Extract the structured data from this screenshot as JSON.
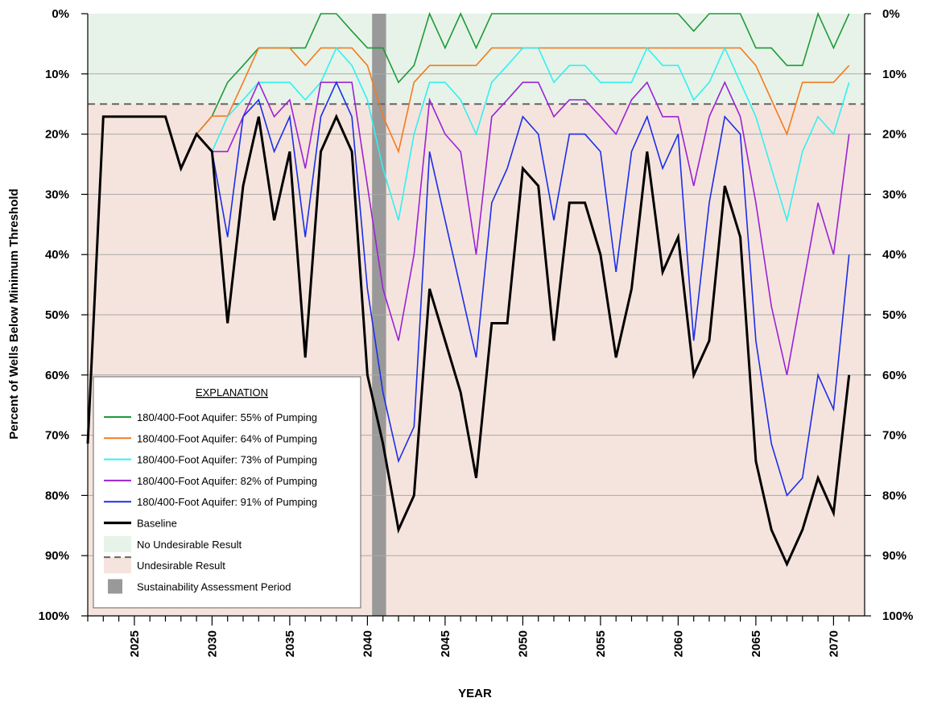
{
  "chart_data": {
    "type": "line",
    "xlabel": "YEAR",
    "ylabel": "Percent of Wells Below Minimum Threshold",
    "xlim": [
      2022,
      2072
    ],
    "ylim": [
      0,
      100
    ],
    "y_inverted": true,
    "x_ticks": [
      "2025",
      "2030",
      "2035",
      "2040",
      "2045",
      "2050",
      "2055",
      "2060",
      "2065",
      "2070"
    ],
    "y_ticks": [
      "0%",
      "10%",
      "20%",
      "30%",
      "40%",
      "50%",
      "60%",
      "70%",
      "80%",
      "90%",
      "100%"
    ],
    "grid": true,
    "threshold": 15,
    "zones": [
      {
        "name": "No Undesirable Result",
        "from": 0,
        "to": 15,
        "color": "#e7f3e8"
      },
      {
        "name": "Undesirable Result",
        "from": 15,
        "to": 100,
        "color": "#f5e4dd"
      }
    ],
    "assessment_period": {
      "name": "Sustainability Assessment Period",
      "from": 2040.3,
      "to": 2041.2,
      "color": "#999999"
    },
    "legend": {
      "title": "EXPLANATION",
      "placement": "bottom-left",
      "items": [
        {
          "label": "180/400-Foot Aquifer: 55% of Pumping",
          "kind": "line",
          "color": "#1e9a3a"
        },
        {
          "label": "180/400-Foot Aquifer: 64% of Pumping",
          "kind": "line",
          "color": "#f47b20"
        },
        {
          "label": "180/400-Foot Aquifer: 73% of Pumping",
          "kind": "line",
          "color": "#33f0f0"
        },
        {
          "label": "180/400-Foot Aquifer: 82% of Pumping",
          "kind": "line",
          "color": "#9b22d6"
        },
        {
          "label": "180/400-Foot Aquifer: 91% of Pumping",
          "kind": "line",
          "color": "#1a2ee8"
        },
        {
          "label": "Baseline",
          "kind": "thick-line",
          "color": "#000000"
        },
        {
          "label": "No Undesirable Result",
          "kind": "fill",
          "color": "#e7f3e8"
        },
        {
          "label": "Undesirable Result",
          "kind": "dash-fill",
          "color": "#f5e4dd"
        },
        {
          "label": "Sustainability Assessment Period",
          "kind": "box",
          "color": "#999999"
        }
      ]
    },
    "x": [
      2022,
      2023,
      2024,
      2025,
      2026,
      2027,
      2028,
      2029,
      2030,
      2031,
      2032,
      2033,
      2034,
      2035,
      2036,
      2037,
      2038,
      2039,
      2040,
      2041,
      2042,
      2043,
      2044,
      2045,
      2046,
      2047,
      2048,
      2049,
      2050,
      2051,
      2052,
      2053,
      2054,
      2055,
      2056,
      2057,
      2058,
      2059,
      2060,
      2061,
      2062,
      2063,
      2064,
      2065,
      2066,
      2067,
      2068,
      2069,
      2070,
      2071
    ],
    "series": [
      {
        "name": "180/400-Foot Aquifer: 55% of Pumping",
        "color": "#1e9a3a",
        "width": 1.6,
        "values": [
          null,
          null,
          null,
          null,
          null,
          null,
          null,
          20,
          17,
          11.4,
          8.6,
          5.7,
          5.7,
          5.7,
          5.7,
          0,
          0,
          2.9,
          5.7,
          5.7,
          11.4,
          8.6,
          0,
          5.7,
          0,
          5.7,
          0,
          0,
          0,
          0,
          0,
          0,
          0,
          0,
          0,
          0,
          0,
          0,
          0,
          2.9,
          0,
          0,
          0,
          5.7,
          5.7,
          8.6,
          8.6,
          0,
          5.7,
          0
        ]
      },
      {
        "name": "180/400-Foot Aquifer: 64% of Pumping",
        "color": "#f47b20",
        "width": 1.6,
        "values": [
          null,
          null,
          null,
          null,
          null,
          null,
          null,
          20,
          17,
          17,
          11.4,
          5.7,
          5.7,
          5.7,
          8.6,
          5.7,
          5.7,
          5.7,
          8.6,
          17,
          22.9,
          11.4,
          8.6,
          8.6,
          8.6,
          8.6,
          5.7,
          5.7,
          5.7,
          5.7,
          5.7,
          5.7,
          5.7,
          5.7,
          5.7,
          5.7,
          5.7,
          5.7,
          5.7,
          5.7,
          5.7,
          5.7,
          5.7,
          8.6,
          14.3,
          20,
          11.4,
          11.4,
          11.4,
          8.6
        ]
      },
      {
        "name": "180/400-Foot Aquifer: 73% of Pumping",
        "color": "#33f0f0",
        "width": 1.6,
        "values": [
          null,
          null,
          null,
          null,
          null,
          null,
          null,
          null,
          22.9,
          17.1,
          14.3,
          11.4,
          11.4,
          11.4,
          14.3,
          11.4,
          5.7,
          8.6,
          14.3,
          25.7,
          34.3,
          20,
          11.4,
          11.4,
          14.3,
          20,
          11.4,
          8.6,
          5.7,
          5.7,
          11.4,
          8.6,
          8.6,
          11.4,
          11.4,
          11.4,
          5.7,
          8.6,
          8.6,
          14.3,
          11.4,
          5.7,
          11.4,
          17.1,
          25.7,
          34.3,
          22.9,
          17.1,
          20,
          11.4
        ]
      },
      {
        "name": "180/400-Foot Aquifer: 82% of Pumping",
        "color": "#9b22d6",
        "width": 1.6,
        "values": [
          null,
          null,
          null,
          null,
          null,
          null,
          null,
          null,
          22.9,
          22.9,
          17.1,
          11.4,
          17.1,
          14.3,
          25.7,
          11.4,
          11.4,
          11.4,
          28.6,
          45.7,
          54.3,
          40,
          14.3,
          20,
          22.9,
          40,
          17.1,
          14.3,
          11.4,
          11.4,
          17.1,
          14.3,
          14.3,
          17.1,
          20,
          14.3,
          11.4,
          17.1,
          17.1,
          28.6,
          17.1,
          11.4,
          17.1,
          31.4,
          48.6,
          60,
          45.7,
          31.4,
          40,
          20
        ]
      },
      {
        "name": "180/400-Foot Aquifer: 91% of Pumping",
        "color": "#1a2ee8",
        "width": 1.6,
        "values": [
          null,
          null,
          null,
          null,
          null,
          null,
          null,
          null,
          22.9,
          37.1,
          17.1,
          14.3,
          22.9,
          17.1,
          37.1,
          17.1,
          11.4,
          17.1,
          45.7,
          62.9,
          74.3,
          68.6,
          22.9,
          34.3,
          45.7,
          57.1,
          31.4,
          25.7,
          17.1,
          20,
          34.3,
          20,
          20,
          22.9,
          42.9,
          22.9,
          17.1,
          25.7,
          20,
          54.3,
          31.4,
          17.1,
          20,
          54.3,
          71.4,
          80,
          77.1,
          60,
          65.7,
          40
        ]
      },
      {
        "name": "Baseline",
        "color": "#000000",
        "width": 3,
        "values": [
          71.4,
          17.1,
          17.1,
          17.1,
          17.1,
          17.1,
          25.7,
          20,
          22.9,
          51.4,
          28.6,
          17.1,
          34.3,
          22.9,
          57.1,
          22.9,
          17.1,
          22.9,
          60,
          71.4,
          85.7,
          80,
          45.7,
          54.3,
          62.9,
          77.1,
          51.4,
          51.4,
          25.7,
          28.6,
          54.3,
          31.4,
          31.4,
          40,
          57.1,
          45.7,
          22.9,
          42.9,
          37.1,
          60,
          54.3,
          28.6,
          37.1,
          74.3,
          85.7,
          91.4,
          85.7,
          77.1,
          82.9,
          60
        ]
      }
    ]
  }
}
